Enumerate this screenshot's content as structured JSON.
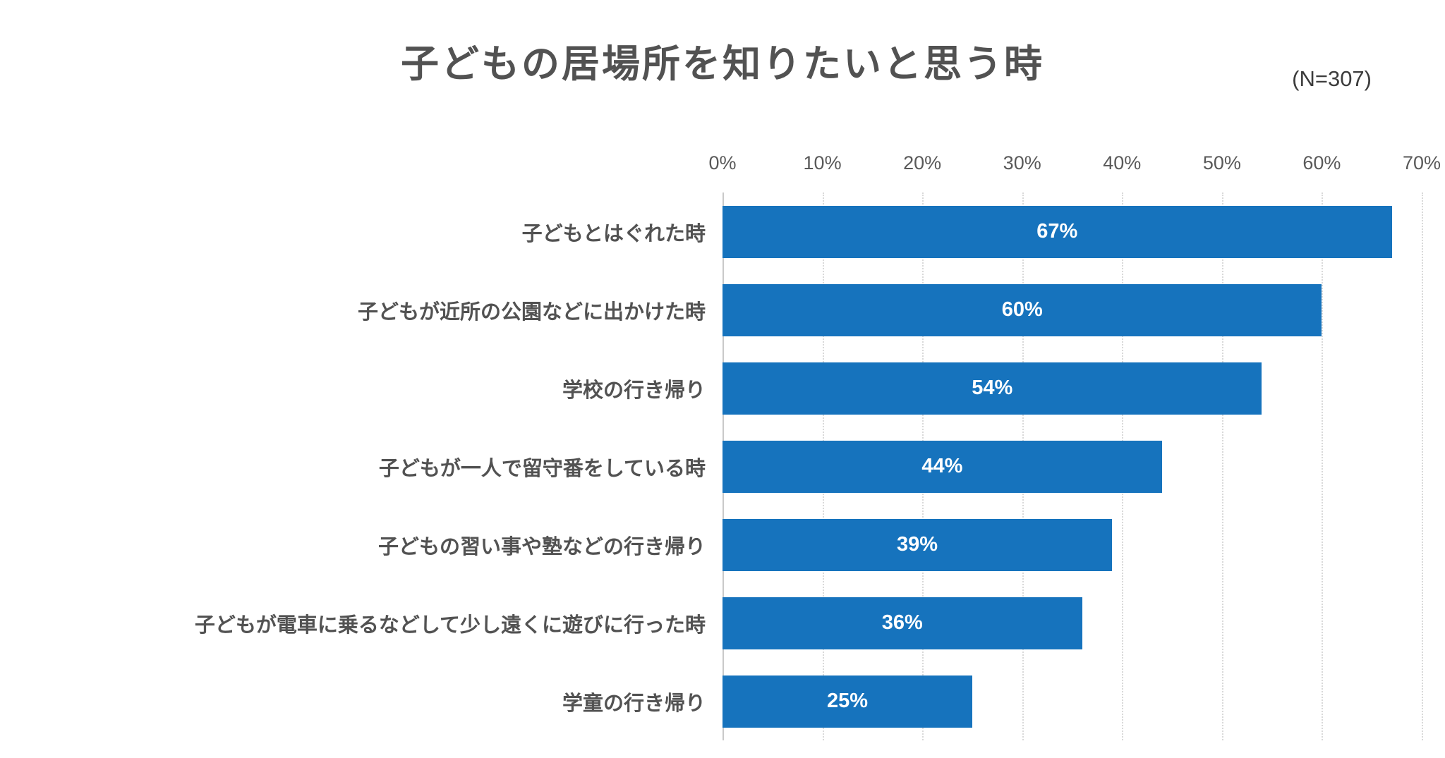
{
  "header": {
    "title": "子どもの居場所を知りたいと思う時",
    "sample_size": "(N=307)"
  },
  "colors": {
    "bar": "#1673bd",
    "title_text": "#525252",
    "axis_text": "#595959",
    "gridline": "#d9d9d9",
    "value_text": "#ffffff"
  },
  "chart_data": {
    "type": "bar",
    "orientation": "horizontal",
    "title": "子どもの居場所を知りたいと思う時",
    "subtitle": "(N=307)",
    "xlabel": "",
    "ylabel": "",
    "xlim": [
      0,
      70
    ],
    "x_ticks": [
      0,
      10,
      20,
      30,
      40,
      50,
      60,
      70
    ],
    "x_tick_labels": [
      "0%",
      "10%",
      "20%",
      "30%",
      "40%",
      "50%",
      "60%",
      "70%"
    ],
    "grid": "vertical-dotted",
    "legend": "none",
    "bar_color": "#1673bd",
    "categories": [
      "子どもとはぐれた時",
      "子どもが近所の公園などに出かけた時",
      "学校の行き帰り",
      "子どもが一人で留守番をしている時",
      "子どもの習い事や塾などの行き帰り",
      "子どもが電車に乗るなどして少し遠くに遊びに行った時",
      "学童の行き帰り"
    ],
    "values": [
      67,
      60,
      54,
      44,
      39,
      36,
      25
    ],
    "value_labels": [
      "67%",
      "60%",
      "54%",
      "44%",
      "39%",
      "36%",
      "25%"
    ]
  }
}
